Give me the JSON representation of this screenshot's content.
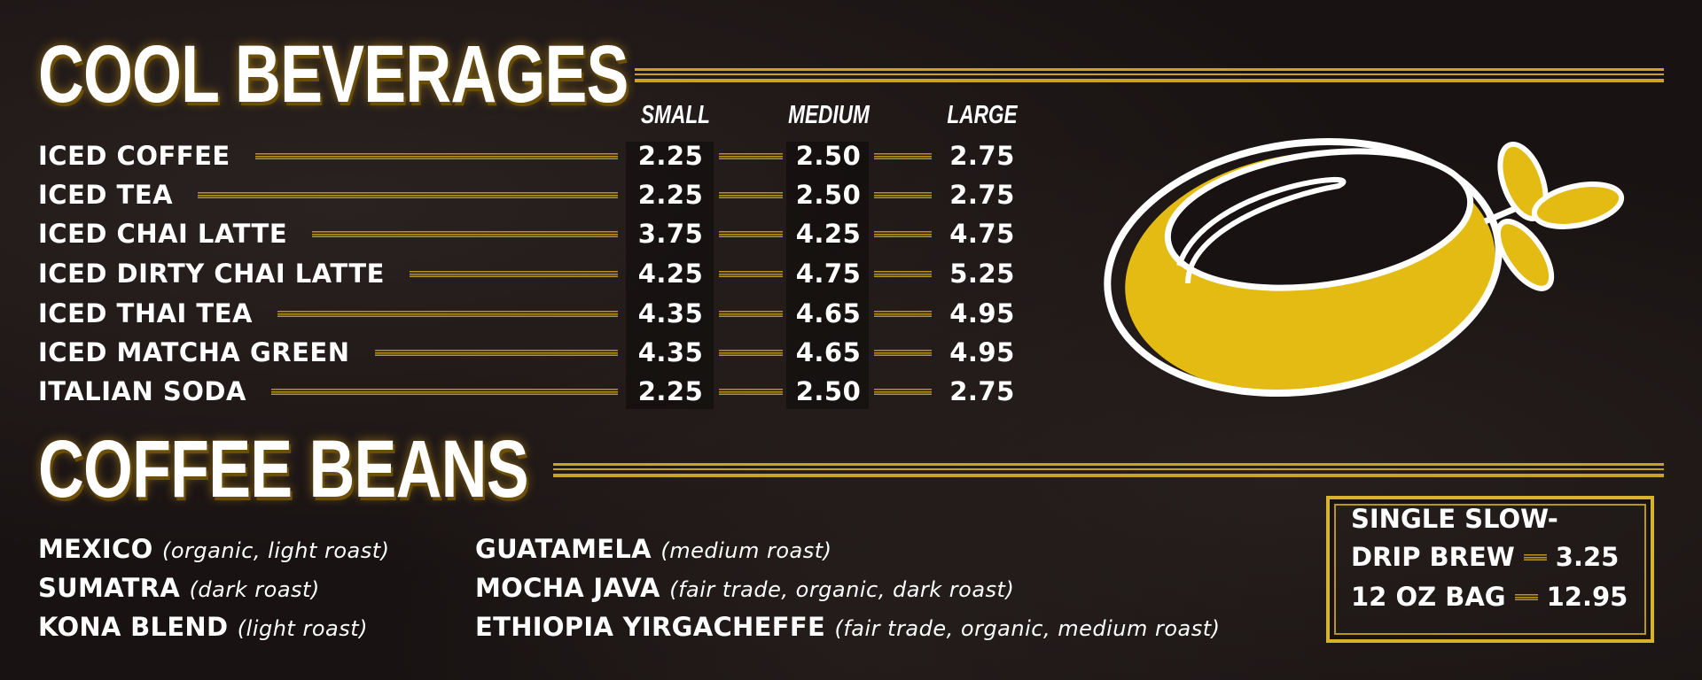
{
  "beverages": {
    "title": "COOL BEVERAGES",
    "sizes": [
      "SMALL",
      "MEDIUM",
      "LARGE"
    ],
    "items": [
      {
        "name": "ICED COFFEE",
        "prices": [
          "2.25",
          "2.50",
          "2.75"
        ]
      },
      {
        "name": "ICED TEA",
        "prices": [
          "2.25",
          "2.50",
          "2.75"
        ]
      },
      {
        "name": "ICED CHAI LATTE",
        "prices": [
          "3.75",
          "4.25",
          "4.75"
        ]
      },
      {
        "name": "ICED DIRTY CHAI LATTE",
        "prices": [
          "4.25",
          "4.75",
          "5.25"
        ]
      },
      {
        "name": "ICED THAI TEA",
        "prices": [
          "4.35",
          "4.65",
          "4.95"
        ]
      },
      {
        "name": "ICED MATCHA GREEN",
        "prices": [
          "4.35",
          "4.65",
          "4.95"
        ]
      },
      {
        "name": "ITALIAN SODA",
        "prices": [
          "2.25",
          "2.50",
          "2.75"
        ]
      }
    ]
  },
  "beans": {
    "title": "COFFEE BEANS",
    "columns": [
      [
        {
          "name": "MEXICO",
          "note": "(organic, light roast)"
        },
        {
          "name": "SUMATRA",
          "note": "(dark roast)"
        },
        {
          "name": "KONA BLEND",
          "note": "(light roast)"
        }
      ],
      [
        {
          "name": "GUATAMELA",
          "note": "(medium roast)"
        },
        {
          "name": "MOCHA JAVA",
          "note": "(fair trade, organic, dark roast)"
        },
        {
          "name": "ETHIOPIA YIRGACHEFFE",
          "note": "(fair trade, organic, medium roast)"
        }
      ]
    ]
  },
  "box": {
    "items": [
      {
        "name": [
          "SINGLE SLOW-",
          "DRIP BREW"
        ],
        "price": "3.25"
      },
      {
        "name": [
          "12 OZ BAG"
        ],
        "price": "12.95"
      }
    ]
  }
}
